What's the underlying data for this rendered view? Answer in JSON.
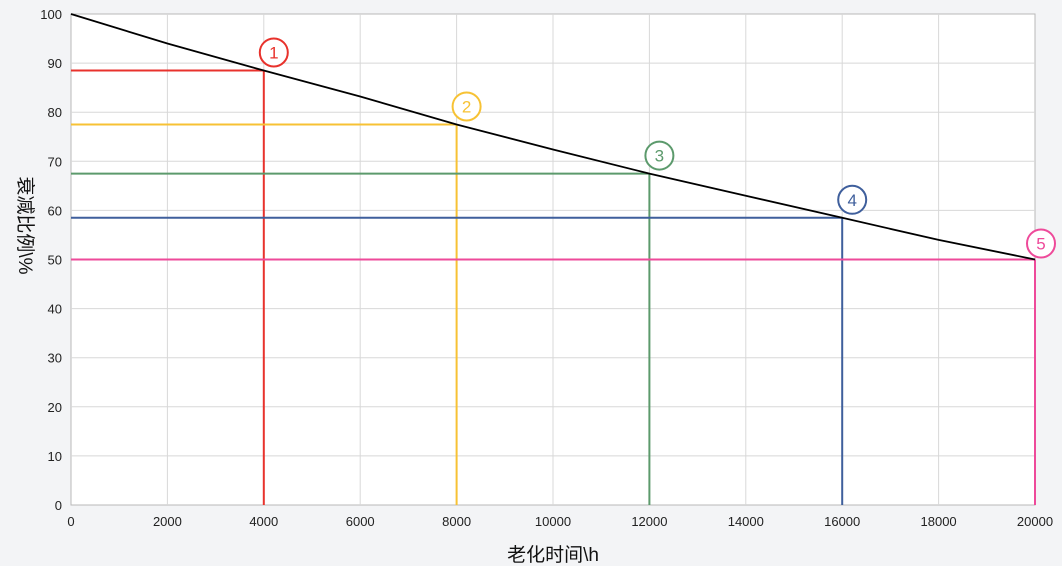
{
  "chart_data": {
    "type": "line",
    "title": "",
    "xlabel": "老化时间\\h",
    "ylabel": "衰减比例\\%",
    "xlim": [
      0,
      20000
    ],
    "ylim": [
      0,
      100
    ],
    "x_ticks": [
      0,
      2000,
      4000,
      6000,
      8000,
      10000,
      12000,
      14000,
      16000,
      18000,
      20000
    ],
    "y_ticks": [
      0,
      10,
      20,
      30,
      40,
      50,
      60,
      70,
      80,
      90,
      100
    ],
    "grid": true,
    "series": [
      {
        "x": [
          0,
          2000,
          4000,
          6000,
          8000,
          10000,
          12000,
          14000,
          16000,
          18000,
          20000
        ],
        "y": [
          100,
          94.0,
          88.5,
          83.2,
          77.5,
          72.4,
          67.5,
          63.0,
          58.5,
          54.0,
          50.0
        ],
        "color": "#000000"
      }
    ],
    "markers": [
      {
        "label": "①",
        "x": 4000,
        "y": 88.5,
        "color": "#e8322c"
      },
      {
        "label": "②",
        "x": 8000,
        "y": 77.5,
        "color": "#f7c234"
      },
      {
        "label": "③",
        "x": 12000,
        "y": 67.5,
        "color": "#5c9a6c"
      },
      {
        "label": "④",
        "x": 16000,
        "y": 58.5,
        "color": "#3f5f9c"
      },
      {
        "label": "⑤",
        "x": 20000,
        "y": 50.0,
        "color": "#ee4a9a"
      }
    ]
  }
}
